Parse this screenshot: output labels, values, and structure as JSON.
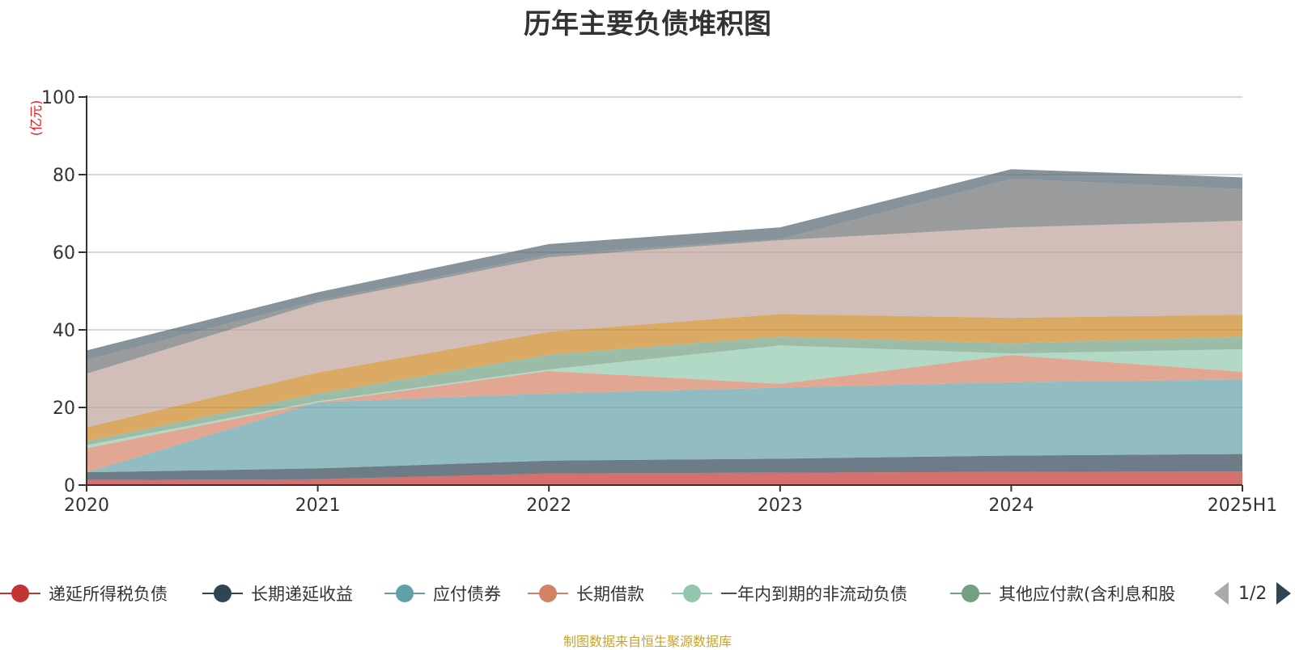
{
  "chart_data": {
    "type": "area",
    "stacked": true,
    "title": "历年主要负债堆积图",
    "ylabel": "(亿元)",
    "xlabel": "",
    "categories": [
      "2020",
      "2021",
      "2022",
      "2023",
      "2024",
      "2025H1"
    ],
    "ylim": [
      0,
      100
    ],
    "yticks": [
      0,
      20,
      40,
      60,
      80,
      100
    ],
    "grid": true,
    "legend_placement": "bottom",
    "series": [
      {
        "name": "递延所得税负债",
        "color": "#c23531",
        "values": [
          1.3,
          1.5,
          3.0,
          3.2,
          3.4,
          3.5
        ]
      },
      {
        "name": "长期递延收益",
        "color": "#2f4554",
        "values": [
          2.0,
          2.8,
          3.3,
          3.6,
          4.2,
          4.5
        ]
      },
      {
        "name": "应付债券",
        "color": "#61a0a8",
        "values": [
          0.0,
          17.0,
          17.3,
          18.3,
          18.9,
          19.2
        ]
      },
      {
        "name": "长期借款",
        "color": "#d48265",
        "values": [
          6.2,
          0.0,
          5.8,
          1.0,
          7.0,
          2.0
        ]
      },
      {
        "name": "一年内到期的非流动负债",
        "color": "#91c7ae",
        "values": [
          0.8,
          0.3,
          0.4,
          9.9,
          0.4,
          5.8
        ]
      },
      {
        "name": "其他应付款(含利息和股",
        "color": "#749f83",
        "values": [
          1.0,
          2.0,
          3.8,
          2.3,
          2.6,
          3.3
        ]
      },
      {
        "name": "",
        "color": "#ca8622",
        "values": [
          3.6,
          5.4,
          5.9,
          5.8,
          6.6,
          5.6
        ]
      },
      {
        "name": "",
        "color": "#bda29a",
        "values": [
          13.8,
          18.0,
          19.2,
          19.0,
          23.3,
          24.2
        ]
      },
      {
        "name": "",
        "color": "#6e7074",
        "values": [
          3.6,
          0.5,
          0.7,
          0.3,
          12.5,
          8.2
        ]
      },
      {
        "name": "",
        "color": "#546570",
        "values": [
          2.4,
          2.2,
          2.7,
          3.0,
          2.5,
          3.0
        ]
      }
    ]
  },
  "legend": {
    "items": [
      {
        "label": "递延所得税负债",
        "color": "#c23531"
      },
      {
        "label": "长期递延收益",
        "color": "#2f4554"
      },
      {
        "label": "应付债券",
        "color": "#61a0a8"
      },
      {
        "label": "长期借款",
        "color": "#d48265"
      },
      {
        "label": "一年内到期的非流动负债",
        "color": "#91c7ae"
      },
      {
        "label": "其他应付款(含利息和股",
        "color": "#749f83"
      }
    ],
    "pager_text": "1/2"
  },
  "footer": {
    "source_note": "制图数据来自恒生聚源数据库"
  }
}
